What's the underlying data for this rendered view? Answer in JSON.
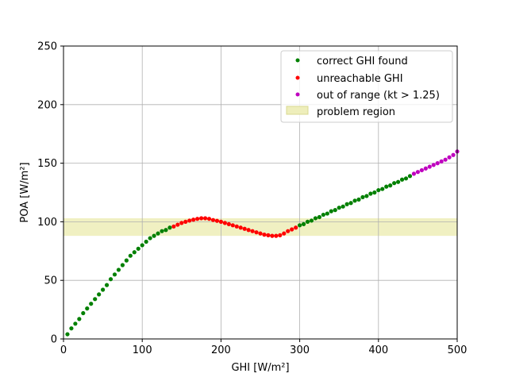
{
  "chart_data": {
    "type": "scatter",
    "xlabel": "GHI [W/m²]",
    "ylabel": "POA [W/m²]",
    "xlim": [
      0,
      500
    ],
    "ylim": [
      0,
      250
    ],
    "xticks": [
      "0",
      "100",
      "200",
      "300",
      "400",
      "500"
    ],
    "yticks": [
      "0",
      "50",
      "100",
      "150",
      "200",
      "250"
    ],
    "grid": true,
    "legend_position": "top-right",
    "band": {
      "name": "problem region",
      "y_range": [
        88,
        103
      ],
      "color": "#eeeebb"
    },
    "series": [
      {
        "name": "correct GHI found",
        "color": "#008000",
        "points": [
          [
            5,
            4
          ],
          [
            10,
            9
          ],
          [
            15,
            13
          ],
          [
            20,
            17
          ],
          [
            25,
            22
          ],
          [
            30,
            26
          ],
          [
            35,
            30
          ],
          [
            40,
            34
          ],
          [
            45,
            38
          ],
          [
            50,
            42
          ],
          [
            55,
            46
          ],
          [
            60,
            51
          ],
          [
            65,
            55
          ],
          [
            70,
            59
          ],
          [
            75,
            63
          ],
          [
            80,
            67
          ],
          [
            85,
            71
          ],
          [
            90,
            74
          ],
          [
            95,
            77
          ],
          [
            100,
            80
          ],
          [
            105,
            83
          ],
          [
            110,
            86
          ],
          [
            115,
            88
          ],
          [
            120,
            90
          ],
          [
            125,
            92
          ],
          [
            130,
            93
          ],
          [
            135,
            95
          ],
          [
            300,
            97
          ],
          [
            305,
            98
          ],
          [
            310,
            100
          ],
          [
            315,
            101
          ],
          [
            320,
            103
          ],
          [
            325,
            104
          ],
          [
            330,
            106
          ],
          [
            335,
            107
          ],
          [
            340,
            109
          ],
          [
            345,
            110
          ],
          [
            350,
            112
          ],
          [
            355,
            113
          ],
          [
            360,
            115
          ],
          [
            365,
            116
          ],
          [
            370,
            118
          ],
          [
            375,
            119
          ],
          [
            380,
            121
          ],
          [
            385,
            122
          ],
          [
            390,
            124
          ],
          [
            395,
            125
          ],
          [
            400,
            127
          ],
          [
            405,
            128
          ],
          [
            410,
            130
          ],
          [
            415,
            131
          ],
          [
            420,
            133
          ],
          [
            425,
            134
          ],
          [
            430,
            136
          ],
          [
            435,
            137
          ],
          [
            440,
            139
          ]
        ]
      },
      {
        "name": "unreachable GHI",
        "color": "#ff0000",
        "points": [
          [
            140,
            96
          ],
          [
            145,
            97.5
          ],
          [
            150,
            99
          ],
          [
            155,
            100
          ],
          [
            160,
            101
          ],
          [
            165,
            101.8
          ],
          [
            170,
            102.5
          ],
          [
            175,
            103
          ],
          [
            180,
            103
          ],
          [
            185,
            102.5
          ],
          [
            190,
            101.5
          ],
          [
            195,
            100.8
          ],
          [
            200,
            100
          ],
          [
            205,
            99
          ],
          [
            210,
            98
          ],
          [
            215,
            97
          ],
          [
            220,
            96
          ],
          [
            225,
            95
          ],
          [
            230,
            94
          ],
          [
            235,
            93
          ],
          [
            240,
            92
          ],
          [
            245,
            91
          ],
          [
            250,
            90
          ],
          [
            255,
            89
          ],
          [
            260,
            88.5
          ],
          [
            265,
            88
          ],
          [
            270,
            88
          ],
          [
            275,
            88.5
          ],
          [
            280,
            90
          ],
          [
            285,
            92
          ],
          [
            290,
            93.5
          ],
          [
            295,
            95
          ]
        ]
      },
      {
        "name": "out of range (kt > 1.25)",
        "color": "#bf00bf",
        "points": [
          [
            445,
            141
          ],
          [
            450,
            142.5
          ],
          [
            455,
            144
          ],
          [
            460,
            145.5
          ],
          [
            465,
            147
          ],
          [
            470,
            148.5
          ],
          [
            475,
            150
          ],
          [
            480,
            151.5
          ],
          [
            485,
            153
          ],
          [
            490,
            155
          ],
          [
            495,
            157
          ],
          [
            500,
            160
          ]
        ]
      }
    ]
  }
}
